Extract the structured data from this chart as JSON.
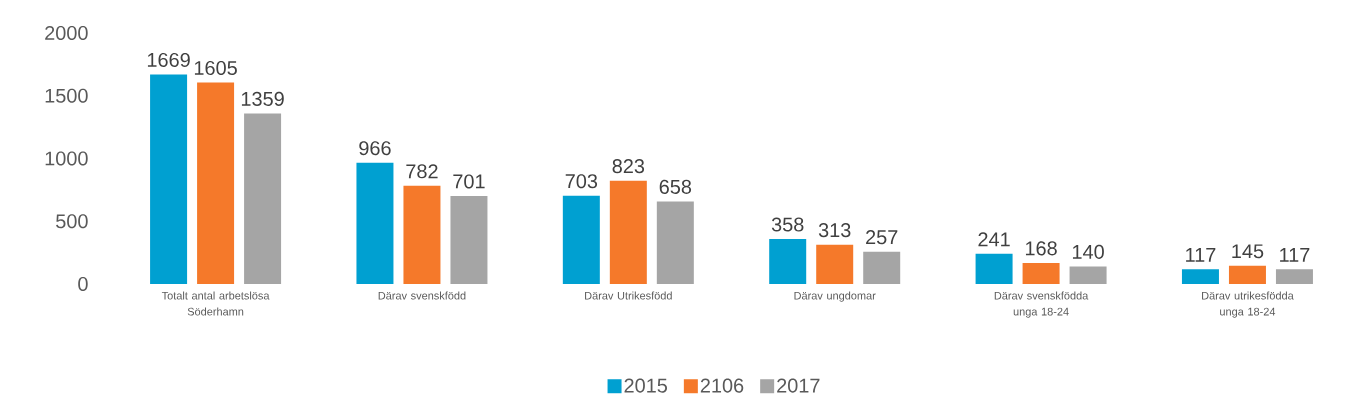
{
  "chart_data": {
    "type": "bar",
    "categories": [
      "Totalt antal arbetslösa Söderhamn",
      "Därav svenskfödd",
      "Därav Utrikesfödd",
      "Därav ungdomar",
      "Därav svenskfödda unga 18-24",
      "Därav utrikesfödda unga 18-24"
    ],
    "series": [
      {
        "name": "2015",
        "color": "#00a0d1",
        "values": [
          1669,
          966,
          703,
          358,
          241,
          117
        ]
      },
      {
        "name": "2106",
        "color": "#f5792a",
        "values": [
          1605,
          782,
          823,
          313,
          168,
          145
        ]
      },
      {
        "name": "2017",
        "color": "#a5a5a5",
        "values": [
          1359,
          701,
          658,
          257,
          140,
          117
        ]
      }
    ],
    "ylim": [
      0,
      2000
    ],
    "yticks": [
      0,
      500,
      1000,
      1500,
      2000
    ],
    "data_labels": true,
    "legend": "bottom"
  }
}
